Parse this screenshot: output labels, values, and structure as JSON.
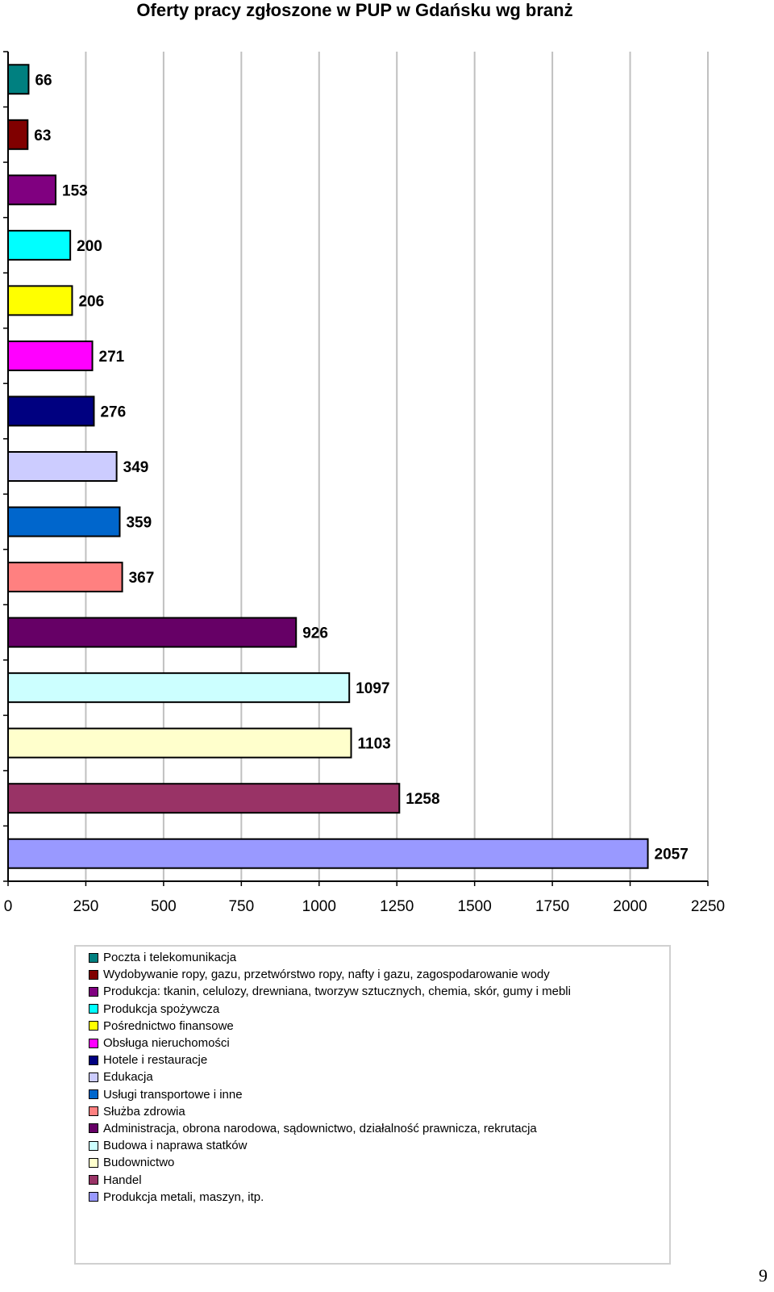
{
  "chart_data": {
    "type": "bar",
    "orientation": "horizontal",
    "title": "Oferty pracy zgłoszone w PUP w Gdańsku wg branż",
    "categories": [
      "Poczta i telekomunikacja",
      "Wydobywanie ropy, gazu, przetwórstwo ropy, nafty i gazu, zagospodarowanie wody",
      "Produkcja: tkanin, celulozy, drewniana, tworzyw sztucznych, chemia, skór, gumy i mebli",
      "Produkcja spożywcza",
      "Pośrednictwo finansowe",
      "Obsługa nieruchomości",
      "Hotele i restauracje",
      "Edukacja",
      "Usługi transportowe i inne",
      "Służba zdrowia",
      "Administracja, obrona narodowa, sądownictwo, działalność prawnicza, rekrutacja",
      "Budowa i naprawa statków",
      "Budownictwo",
      "Handel",
      "Produkcja metali, maszyn, itp."
    ],
    "values": [
      66,
      63,
      153,
      200,
      206,
      271,
      276,
      349,
      359,
      367,
      926,
      1097,
      1103,
      1258,
      2057
    ],
    "data_labels": [
      "66",
      "63",
      "153",
      "200",
      "206",
      "271",
      "276",
      "349",
      "359",
      "367",
      "926",
      "1097",
      "1103",
      "1258",
      "2057"
    ],
    "colors": [
      "#008080",
      "#800000",
      "#800080",
      "#00ffff",
      "#ffff00",
      "#ff00ff",
      "#000080",
      "#ccccff",
      "#0066cc",
      "#ff8080",
      "#660066",
      "#ccffff",
      "#ffffcc",
      "#993366",
      "#9999ff"
    ],
    "xlim": [
      0,
      2250
    ],
    "xticks": [
      0,
      250,
      500,
      750,
      1000,
      1250,
      1500,
      1750,
      2000,
      2250
    ],
    "xtick_labels": [
      "0",
      "250",
      "500",
      "750",
      "1000",
      "1250",
      "1500",
      "1750",
      "2000",
      "2250"
    ],
    "grid": true,
    "legend_position": "bottom"
  },
  "page_number": "9"
}
